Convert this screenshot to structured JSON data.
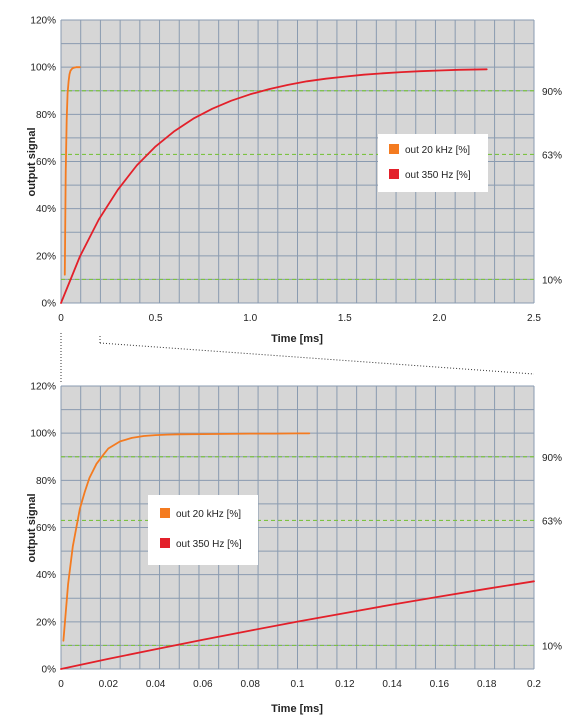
{
  "colors": {
    "plot_bg": "#d6d6d6",
    "grid": "#8a9bb0",
    "ref_line": "#7cc242",
    "series_20khz": "#f47b20",
    "series_350hz": "#e3202a"
  },
  "chart_data": [
    {
      "type": "line",
      "title": "",
      "xlabel": "Time [ms]",
      "ylabel": "output signal",
      "xlim": [
        0,
        2.5
      ],
      "ylim": [
        0,
        120
      ],
      "x_ticks": [
        "0",
        "0.5",
        "1.0",
        "1.5",
        "2.0",
        "2.5"
      ],
      "y_ticks": [
        "0%",
        "20%",
        "40%",
        "60%",
        "80%",
        "100%",
        "120%"
      ],
      "grid": true,
      "legend_position": "center-right",
      "reference_lines": [
        {
          "value": 90,
          "label": "90%"
        },
        {
          "value": 63,
          "label": "63%"
        },
        {
          "value": 10,
          "label": "10%"
        }
      ],
      "series": [
        {
          "name": "out 20 kHz [%]",
          "x": [
            0.02,
            0.025,
            0.03,
            0.035,
            0.04,
            0.045,
            0.05,
            0.06,
            0.07,
            0.08,
            0.09,
            0.1
          ],
          "y": [
            12,
            55,
            78,
            89,
            94,
            97,
            98.5,
            99.5,
            99.8,
            100,
            100,
            100
          ]
        },
        {
          "name": "out 350 Hz [%]",
          "x": [
            0,
            0.1,
            0.2,
            0.3,
            0.4,
            0.5,
            0.6,
            0.7,
            0.8,
            0.9,
            1.0,
            1.1,
            1.2,
            1.3,
            1.4,
            1.5,
            1.6,
            1.7,
            1.8,
            1.9,
            2.0,
            2.1,
            2.25
          ],
          "y": [
            0,
            19.7,
            35.4,
            48,
            58.3,
            66.4,
            72.9,
            78.2,
            82.4,
            85.8,
            88.5,
            90.7,
            92.5,
            94,
            95.1,
            96,
            96.8,
            97.4,
            97.9,
            98.3,
            98.6,
            98.9,
            99.1
          ]
        }
      ]
    },
    {
      "type": "line",
      "title": "",
      "xlabel": "Time [ms]",
      "ylabel": "output signal",
      "xlim": [
        0,
        0.2
      ],
      "ylim": [
        0,
        120
      ],
      "x_ticks": [
        "0",
        "0.02",
        "0.04",
        "0.06",
        "0.08",
        "0.1",
        "0.12",
        "0.14",
        "0.16",
        "0.18",
        "0.2"
      ],
      "y_ticks": [
        "0%",
        "20%",
        "40%",
        "60%",
        "80%",
        "100%",
        "120%"
      ],
      "grid": true,
      "legend_position": "center-left",
      "reference_lines": [
        {
          "value": 90,
          "label": "90%"
        },
        {
          "value": 63,
          "label": "63%"
        },
        {
          "value": 10,
          "label": "10%"
        }
      ],
      "series": [
        {
          "name": "out 20 kHz [%]",
          "x": [
            0.001,
            0.003,
            0.005,
            0.008,
            0.01,
            0.012,
            0.015,
            0.018,
            0.02,
            0.025,
            0.03,
            0.035,
            0.04,
            0.045,
            0.05,
            0.06,
            0.07,
            0.08,
            0.09,
            0.1,
            0.105
          ],
          "y": [
            12,
            36,
            52,
            68,
            75,
            81,
            87,
            91,
            93.5,
            96.5,
            98,
            98.8,
            99.2,
            99.4,
            99.5,
            99.6,
            99.7,
            99.8,
            99.8,
            99.9,
            99.9
          ]
        },
        {
          "name": "out 350 Hz [%]",
          "x": [
            0,
            0.02,
            0.04,
            0.06,
            0.08,
            0.1,
            0.12,
            0.14,
            0.16,
            0.18,
            0.2
          ],
          "y": [
            0,
            4.3,
            8.4,
            12.4,
            16.3,
            20.1,
            23.7,
            27.3,
            30.7,
            34,
            37.2
          ]
        }
      ]
    }
  ]
}
